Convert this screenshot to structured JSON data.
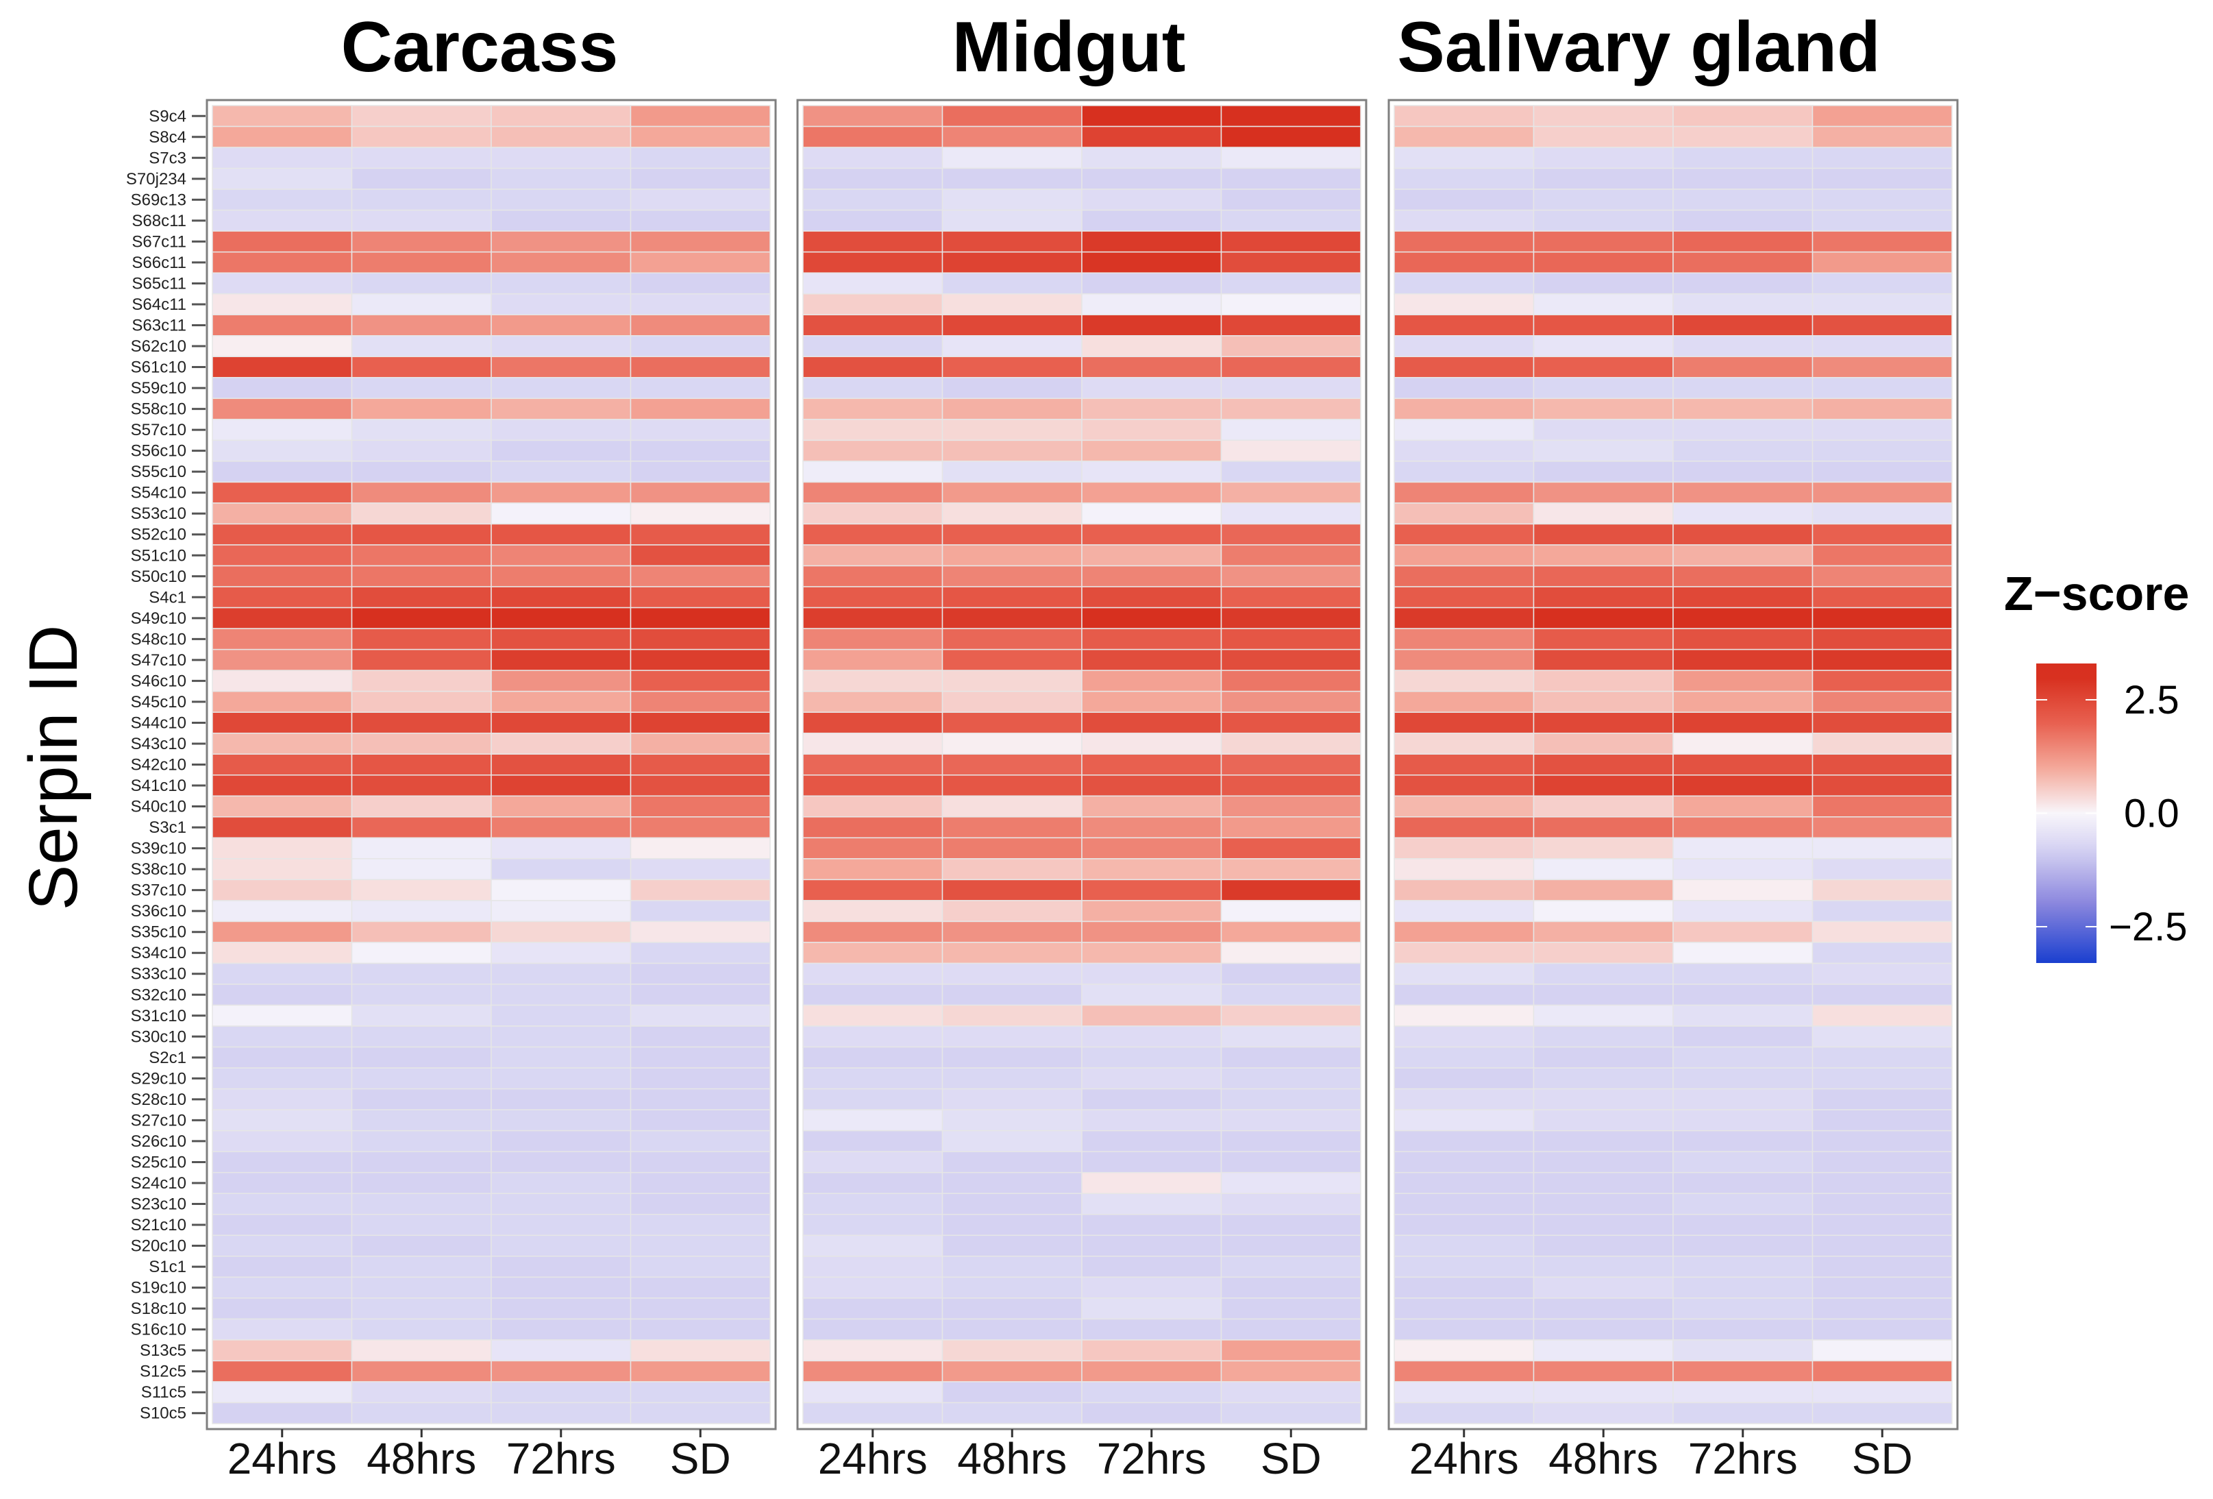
{
  "chart_data": {
    "type": "heatmap",
    "ylabel": "Serpin ID",
    "facets": [
      "Carcass",
      "Midgut",
      "Salivary gland"
    ],
    "columns": [
      "24hrs",
      "48hrs",
      "72hrs",
      "SD"
    ],
    "legend": {
      "title": "Z−score",
      "ticks": [
        "2.5",
        "0.0",
        "−2.5"
      ],
      "tick_values": [
        2.5,
        0,
        -2.5
      ],
      "limits": [
        -3.3,
        3.3
      ],
      "placement": "right"
    },
    "colors": {
      "low": "#1a3fcf",
      "mid": "#f8f6fb",
      "high": "#d7301f"
    },
    "rows": [
      "S9c4",
      "S8c4",
      "S7c3",
      "S70j234",
      "S69c13",
      "S68c11",
      "S67c11",
      "S66c11",
      "S65c11",
      "S64c11",
      "S63c11",
      "S62c10",
      "S61c10",
      "S59c10",
      "S58c10",
      "S57c10",
      "S56c10",
      "S55c10",
      "S54c10",
      "S53c10",
      "S52c10",
      "S51c10",
      "S50c10",
      "S4c1",
      "S49c10",
      "S48c10",
      "S47c10",
      "S46c10",
      "S45c10",
      "S44c10",
      "S43c10",
      "S42c10",
      "S41c10",
      "S40c10",
      "S3c1",
      "S39c10",
      "S38c10",
      "S37c10",
      "S36c10",
      "S35c10",
      "S34c10",
      "S33c10",
      "S32c10",
      "S31c10",
      "S30c10",
      "S2c1",
      "S29c10",
      "S28c10",
      "S27c10",
      "S26c10",
      "S25c10",
      "S24c10",
      "S23c10",
      "S21c10",
      "S20c10",
      "S1c1",
      "S19c10",
      "S18c10",
      "S16c10",
      "S13c5",
      "S12c5",
      "S11c5",
      "S10c5"
    ],
    "values": [
      [
        0.8,
        0.5,
        0.6,
        1.2,
        1.3,
        1.8,
        3.0,
        3.0,
        0.6,
        0.5,
        0.6,
        1.1
      ],
      [
        1.0,
        0.6,
        0.7,
        1.0,
        1.7,
        1.5,
        2.6,
        3.0,
        0.8,
        0.5,
        0.5,
        0.9
      ],
      [
        -0.6,
        -0.6,
        -0.6,
        -0.7,
        -0.6,
        -0.3,
        -0.5,
        -0.3,
        -0.5,
        -0.6,
        -0.7,
        -0.7
      ],
      [
        -0.5,
        -0.8,
        -0.7,
        -0.8,
        -0.8,
        -0.8,
        -0.8,
        -0.8,
        -0.7,
        -0.8,
        -0.8,
        -0.8
      ],
      [
        -0.7,
        -0.7,
        -0.7,
        -0.6,
        -0.7,
        -0.5,
        -0.6,
        -0.8,
        -0.8,
        -0.7,
        -0.7,
        -0.7
      ],
      [
        -0.6,
        -0.6,
        -0.8,
        -0.8,
        -0.8,
        -0.5,
        -0.8,
        -0.7,
        -0.6,
        -0.7,
        -0.8,
        -0.7
      ],
      [
        1.8,
        1.5,
        1.3,
        1.4,
        2.4,
        2.4,
        2.8,
        2.5,
        1.8,
        1.8,
        1.9,
        1.7
      ],
      [
        1.7,
        1.6,
        1.4,
        1.1,
        2.5,
        2.6,
        2.9,
        2.4,
        1.9,
        1.9,
        1.8,
        1.2
      ],
      [
        -0.6,
        -0.7,
        -0.7,
        -0.8,
        -0.4,
        -0.7,
        -0.8,
        -0.7,
        -0.7,
        -0.8,
        -0.8,
        -0.7
      ],
      [
        0.2,
        -0.3,
        -0.6,
        -0.6,
        0.5,
        0.3,
        -0.2,
        -0.1,
        0.2,
        -0.3,
        -0.5,
        -0.5
      ],
      [
        1.6,
        1.3,
        1.2,
        1.4,
        2.3,
        2.5,
        2.8,
        2.5,
        2.2,
        2.2,
        2.5,
        2.3
      ],
      [
        0.1,
        -0.5,
        -0.6,
        -0.7,
        -0.7,
        -0.4,
        0.3,
        0.7,
        -0.6,
        -0.4,
        -0.6,
        -0.6
      ],
      [
        2.6,
        2.0,
        1.7,
        1.8,
        2.3,
        2.0,
        1.8,
        1.9,
        2.1,
        2.0,
        1.6,
        1.4
      ],
      [
        -0.8,
        -0.7,
        -0.7,
        -0.7,
        -0.7,
        -0.8,
        -0.6,
        -0.6,
        -0.8,
        -0.7,
        -0.7,
        -0.7
      ],
      [
        1.4,
        1.0,
        0.9,
        1.1,
        0.8,
        0.9,
        0.7,
        0.7,
        0.9,
        0.8,
        0.8,
        0.9
      ],
      [
        -0.3,
        -0.5,
        -0.6,
        -0.6,
        0.4,
        0.4,
        0.5,
        -0.3,
        -0.3,
        -0.6,
        -0.6,
        -0.6
      ],
      [
        -0.5,
        -0.6,
        -0.8,
        -0.8,
        0.7,
        0.7,
        0.8,
        0.2,
        -0.6,
        -0.5,
        -0.7,
        -0.7
      ],
      [
        -0.8,
        -0.8,
        -0.7,
        -0.8,
        -0.2,
        -0.5,
        -0.4,
        -0.7,
        -0.7,
        -0.8,
        -0.8,
        -0.8
      ],
      [
        2.0,
        1.4,
        1.2,
        1.3,
        1.5,
        1.2,
        1.1,
        0.9,
        1.5,
        1.3,
        1.3,
        1.3
      ],
      [
        0.9,
        0.4,
        -0.1,
        0.1,
        0.5,
        0.3,
        -0.1,
        -0.4,
        0.7,
        0.2,
        -0.4,
        -0.5
      ],
      [
        2.1,
        2.2,
        2.2,
        2.1,
        2.0,
        2.0,
        2.0,
        1.9,
        2.0,
        2.3,
        2.3,
        2.0
      ],
      [
        1.9,
        1.7,
        1.5,
        2.3,
        0.9,
        1.0,
        0.9,
        1.6,
        1.1,
        1.0,
        0.9,
        1.7
      ],
      [
        1.8,
        1.7,
        1.6,
        1.5,
        1.7,
        1.5,
        1.5,
        1.3,
        1.8,
        1.9,
        1.8,
        1.5
      ],
      [
        2.1,
        2.4,
        2.5,
        2.1,
        2.1,
        2.2,
        2.4,
        2.0,
        2.1,
        2.4,
        2.5,
        2.1
      ],
      [
        2.7,
        3.0,
        3.0,
        3.0,
        2.7,
        2.8,
        3.0,
        2.8,
        2.8,
        3.0,
        3.0,
        3.0
      ],
      [
        1.5,
        2.1,
        2.3,
        2.4,
        1.5,
        1.9,
        2.1,
        2.2,
        1.5,
        2.1,
        2.3,
        2.4
      ],
      [
        1.3,
        2.1,
        2.7,
        2.7,
        1.1,
        2.0,
        2.4,
        2.4,
        1.4,
        2.4,
        2.7,
        2.8
      ],
      [
        0.2,
        0.5,
        1.3,
        2.0,
        0.4,
        0.4,
        1.1,
        1.7,
        0.4,
        0.6,
        1.2,
        2.0
      ],
      [
        1.0,
        0.6,
        1.0,
        1.5,
        0.8,
        0.5,
        1.0,
        1.3,
        1.0,
        0.7,
        1.0,
        1.5
      ],
      [
        2.5,
        2.4,
        2.5,
        2.6,
        2.4,
        2.1,
        2.4,
        2.2,
        2.5,
        2.5,
        2.6,
        2.4
      ],
      [
        0.8,
        0.7,
        0.5,
        0.9,
        0.2,
        0.1,
        0.2,
        0.4,
        0.4,
        0.7,
        0.1,
        0.4
      ],
      [
        2.1,
        2.2,
        2.3,
        2.1,
        1.9,
        1.9,
        2.0,
        1.9,
        2.1,
        2.3,
        2.3,
        2.3
      ],
      [
        2.5,
        2.4,
        2.6,
        2.3,
        2.2,
        2.2,
        2.3,
        2.1,
        2.3,
        2.6,
        2.7,
        2.4
      ],
      [
        0.8,
        0.5,
        1.0,
        1.7,
        0.6,
        0.3,
        0.9,
        1.3,
        0.8,
        0.5,
        1.0,
        1.7
      ],
      [
        2.4,
        1.9,
        1.6,
        1.6,
        1.8,
        1.6,
        1.4,
        1.2,
        1.9,
        1.8,
        1.6,
        1.5
      ],
      [
        0.3,
        -0.2,
        -0.4,
        0.1,
        1.6,
        1.6,
        1.5,
        2.0,
        0.5,
        0.4,
        -0.3,
        -0.3
      ],
      [
        0.3,
        -0.2,
        -0.7,
        -0.6,
        1.0,
        0.6,
        0.8,
        0.8,
        0.2,
        -0.2,
        -0.4,
        -0.6
      ],
      [
        0.5,
        0.3,
        -0.1,
        0.5,
        2.0,
        2.3,
        2.0,
        2.8,
        0.7,
        0.9,
        0.1,
        0.4
      ],
      [
        -0.2,
        -0.3,
        -0.2,
        -0.7,
        0.3,
        0.5,
        0.9,
        -0.1,
        -0.4,
        -0.1,
        -0.4,
        -0.7
      ],
      [
        1.2,
        0.7,
        0.4,
        0.2,
        1.4,
        1.3,
        1.3,
        1.0,
        1.1,
        0.9,
        0.6,
        0.3
      ],
      [
        0.3,
        -0.1,
        -0.4,
        -0.7,
        0.8,
        0.8,
        0.8,
        0.1,
        0.5,
        0.5,
        -0.1,
        -0.7
      ],
      [
        -0.7,
        -0.7,
        -0.7,
        -0.8,
        -0.6,
        -0.6,
        -0.6,
        -0.8,
        -0.5,
        -0.7,
        -0.7,
        -0.6
      ],
      [
        -0.8,
        -0.7,
        -0.7,
        -0.8,
        -0.8,
        -0.8,
        -0.5,
        -0.7,
        -0.8,
        -0.8,
        -0.8,
        -0.8
      ],
      [
        -0.1,
        -0.5,
        -0.7,
        -0.5,
        0.3,
        0.4,
        0.7,
        0.5,
        0.1,
        -0.3,
        -0.5,
        0.3
      ],
      [
        -0.7,
        -0.7,
        -0.7,
        -0.8,
        -0.6,
        -0.6,
        -0.6,
        -0.5,
        -0.6,
        -0.7,
        -0.8,
        -0.5
      ],
      [
        -0.8,
        -0.8,
        -0.7,
        -0.8,
        -0.8,
        -0.8,
        -0.7,
        -0.8,
        -0.7,
        -0.8,
        -0.7,
        -0.7
      ],
      [
        -0.7,
        -0.7,
        -0.7,
        -0.8,
        -0.7,
        -0.7,
        -0.6,
        -0.7,
        -0.8,
        -0.7,
        -0.7,
        -0.7
      ],
      [
        -0.6,
        -0.8,
        -0.8,
        -0.8,
        -0.7,
        -0.6,
        -0.8,
        -0.7,
        -0.6,
        -0.6,
        -0.6,
        -0.8
      ],
      [
        -0.5,
        -0.7,
        -0.7,
        -0.8,
        -0.3,
        -0.5,
        -0.6,
        -0.6,
        -0.4,
        -0.6,
        -0.6,
        -0.8
      ],
      [
        -0.6,
        -0.7,
        -0.8,
        -0.7,
        -0.8,
        -0.5,
        -0.8,
        -0.8,
        -0.8,
        -0.8,
        -0.8,
        -0.8
      ],
      [
        -0.8,
        -0.8,
        -0.8,
        -0.8,
        -0.6,
        -0.8,
        -0.8,
        -0.8,
        -0.8,
        -0.8,
        -0.7,
        -0.8
      ],
      [
        -0.8,
        -0.8,
        -0.7,
        -0.8,
        -0.8,
        -0.8,
        0.2,
        -0.4,
        -0.8,
        -0.8,
        -0.8,
        -0.8
      ],
      [
        -0.7,
        -0.7,
        -0.7,
        -0.8,
        -0.7,
        -0.8,
        -0.5,
        -0.6,
        -0.8,
        -0.8,
        -0.7,
        -0.8
      ],
      [
        -0.8,
        -0.7,
        -0.7,
        -0.7,
        -0.7,
        -0.8,
        -0.8,
        -0.8,
        -0.8,
        -0.8,
        -0.8,
        -0.8
      ],
      [
        -0.7,
        -0.8,
        -0.7,
        -0.7,
        -0.5,
        -0.8,
        -0.8,
        -0.8,
        -0.7,
        -0.8,
        -0.8,
        -0.8
      ],
      [
        -0.8,
        -0.7,
        -0.8,
        -0.7,
        -0.6,
        -0.7,
        -0.8,
        -0.7,
        -0.7,
        -0.7,
        -0.7,
        -0.8
      ],
      [
        -0.7,
        -0.7,
        -0.8,
        -0.8,
        -0.6,
        -0.7,
        -0.6,
        -0.8,
        -0.8,
        -0.6,
        -0.7,
        -0.8
      ],
      [
        -0.8,
        -0.7,
        -0.8,
        -0.8,
        -0.8,
        -0.8,
        -0.5,
        -0.8,
        -0.8,
        -0.8,
        -0.7,
        -0.8
      ],
      [
        -0.6,
        -0.7,
        -0.8,
        -0.8,
        -0.8,
        -0.8,
        -0.8,
        -0.8,
        -0.8,
        -0.8,
        -0.8,
        -0.8
      ],
      [
        0.6,
        0.2,
        -0.4,
        0.3,
        0.2,
        0.4,
        0.6,
        1.1,
        0.1,
        -0.3,
        -0.5,
        -0.1
      ],
      [
        1.8,
        1.4,
        1.3,
        1.2,
        1.4,
        1.2,
        1.2,
        1.0,
        1.5,
        1.5,
        1.5,
        1.6
      ],
      [
        -0.3,
        -0.6,
        -0.7,
        -0.7,
        -0.4,
        -0.8,
        -0.7,
        -0.6,
        -0.4,
        -0.4,
        -0.4,
        -0.4
      ],
      [
        -0.8,
        -0.7,
        -0.7,
        -0.7,
        -0.7,
        -0.7,
        -0.8,
        -0.7,
        -0.7,
        -0.6,
        -0.7,
        -0.7
      ]
    ]
  }
}
